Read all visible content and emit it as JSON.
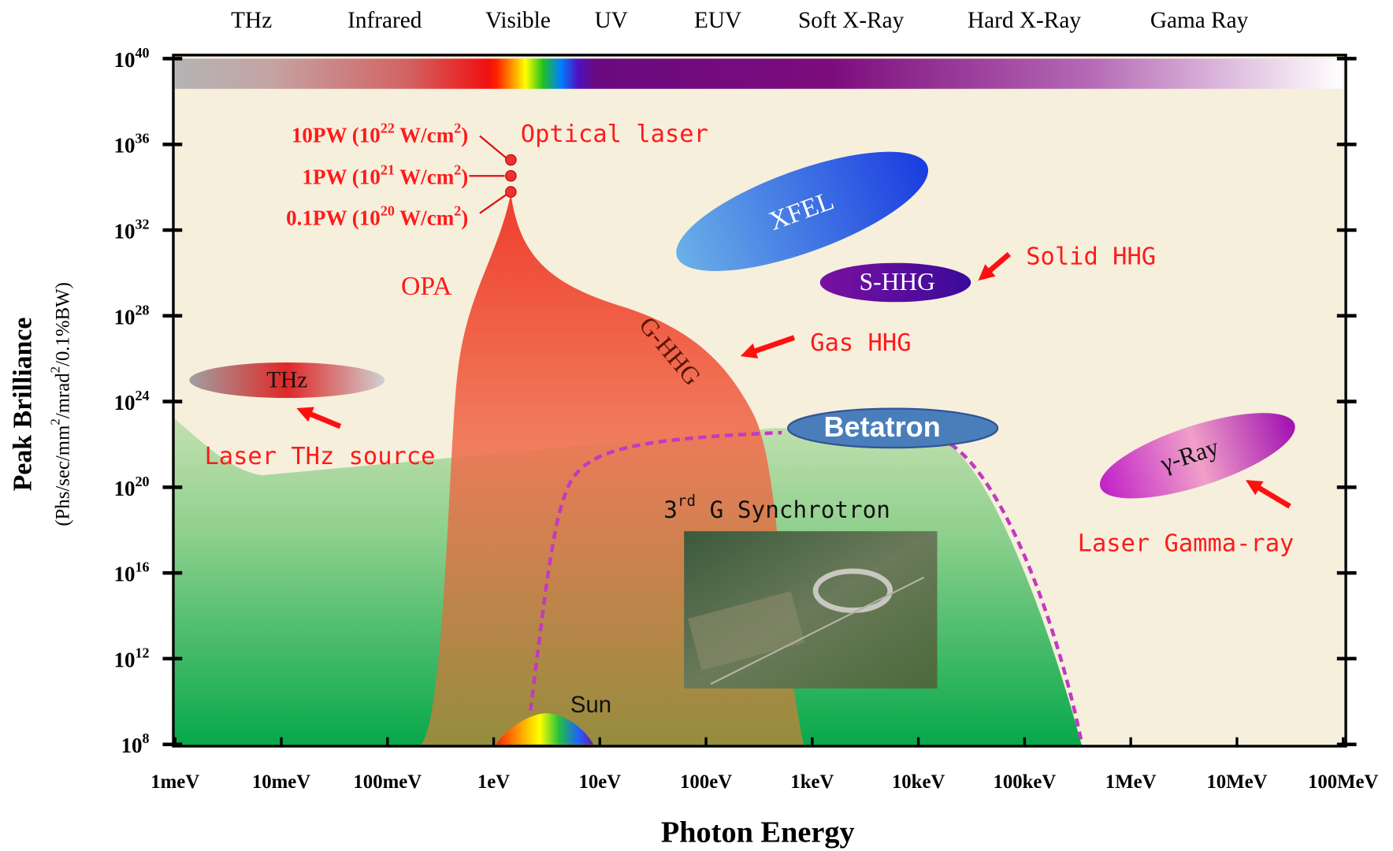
{
  "chart_data": {
    "type": "log-regions",
    "x_label": "Photon Energy",
    "y_label": "Peak Brilliance",
    "y_unit_parts": [
      "(Phs/sec/mm",
      "2",
      "/mrad",
      "2",
      "/0.1%BW)"
    ],
    "xscale": "log",
    "yscale": "log",
    "xlim": [
      0.001,
      100000000
    ],
    "ylim": [
      100000000.0,
      1e+40
    ],
    "xticks": [
      {
        "value": 0.001,
        "label": "1meV"
      },
      {
        "value": 0.01,
        "label": "10meV"
      },
      {
        "value": 0.1,
        "label": "100meV"
      },
      {
        "value": 1,
        "label": "1eV"
      },
      {
        "value": 10,
        "label": "10eV"
      },
      {
        "value": 100,
        "label": "100eV"
      },
      {
        "value": 1000,
        "label": "1keV"
      },
      {
        "value": 10000,
        "label": "10keV"
      },
      {
        "value": 100000,
        "label": "100keV"
      },
      {
        "value": 1000000,
        "label": "1MeV"
      },
      {
        "value": 10000000,
        "label": "10MeV"
      },
      {
        "value": 100000000,
        "label": "100MeV"
      }
    ],
    "yticks": [
      {
        "value": 100000000.0,
        "label": "10",
        "exponent": "8"
      },
      {
        "value": 1000000000000.0,
        "label": "10",
        "exponent": "12"
      },
      {
        "value": 1e+16,
        "label": "10",
        "exponent": "16"
      },
      {
        "value": 1e+20,
        "label": "10",
        "exponent": "20"
      },
      {
        "value": 1e+24,
        "label": "10",
        "exponent": "24"
      },
      {
        "value": 1e+28,
        "label": "10",
        "exponent": "28"
      },
      {
        "value": 1e+32,
        "label": "10",
        "exponent": "32"
      },
      {
        "value": 1e+36,
        "label": "10",
        "exponent": "36"
      },
      {
        "value": 1e+40,
        "label": "10",
        "exponent": "40"
      }
    ],
    "spectrum_bands": [
      "THz",
      "Infrared",
      "Visible",
      "UV",
      "EUV",
      "Soft X-Ray",
      "Hard X-Ray",
      "Gama Ray"
    ],
    "annotations": {
      "optical_laser": "Optical laser",
      "power_10pw": [
        "10PW (10",
        "22",
        " W/cm",
        "2",
        ")"
      ],
      "power_1pw": [
        "1PW (10",
        "21",
        " W/cm",
        "2",
        ")"
      ],
      "power_01pw": [
        "0.1PW (10",
        "20",
        " W/cm",
        "2",
        ")"
      ],
      "opa": "OPA",
      "g_hhg": "G-HHG",
      "gas_hhg": "Gas HHG",
      "xfel": "XFEL",
      "s_hhg": "S-HHG",
      "solid_hhg": "Solid HHG",
      "thz": "THz",
      "laser_thz": "Laser THz source",
      "betatron": "Betatron",
      "gamma": "γ-Ray",
      "laser_gamma": "Laser Gamma-ray",
      "synchrotron": [
        "3",
        "rd",
        " G Synchrotron"
      ],
      "sun": "Sun"
    }
  }
}
